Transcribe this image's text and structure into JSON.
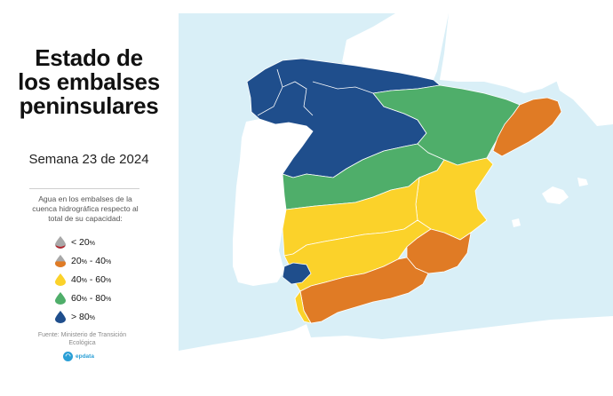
{
  "title_lines": [
    "Estado de",
    "los embalses",
    "peninsulares"
  ],
  "week": "Semana 23 de 2024",
  "legend": {
    "description": "Agua en los embalses de la cuenca hidrográfica respecto al total de su capacidad:",
    "items": [
      {
        "pre": "< 20",
        "low": "%",
        "mid": "",
        "high": "",
        "color": "#b3222b",
        "icon": "droplet-red-icon"
      },
      {
        "pre": "20",
        "low": "%",
        "mid": " - 40",
        "high": "%",
        "color": "#e07b25",
        "icon": "droplet-orange-icon"
      },
      {
        "pre": "40",
        "low": "%",
        "mid": " - 60",
        "high": "%",
        "color": "#fbd22a",
        "icon": "droplet-yellow-icon"
      },
      {
        "pre": "60",
        "low": "%",
        "mid": " - 80",
        "high": "%",
        "color": "#4fae6a",
        "icon": "droplet-green-icon"
      },
      {
        "pre": "> 80",
        "low": "%",
        "mid": "",
        "high": "",
        "color": "#1f4e8c",
        "icon": "droplet-blue-icon"
      }
    ]
  },
  "source": "Fuente: Ministerio de Transición Ecológica",
  "brand": "epdata",
  "colors": {
    "sea": "#d9eff7",
    "land": "#ffffff",
    "blue": "#1f4e8c",
    "green": "#4fae6a",
    "yellow": "#fbd22a",
    "orange": "#e07b25"
  }
}
